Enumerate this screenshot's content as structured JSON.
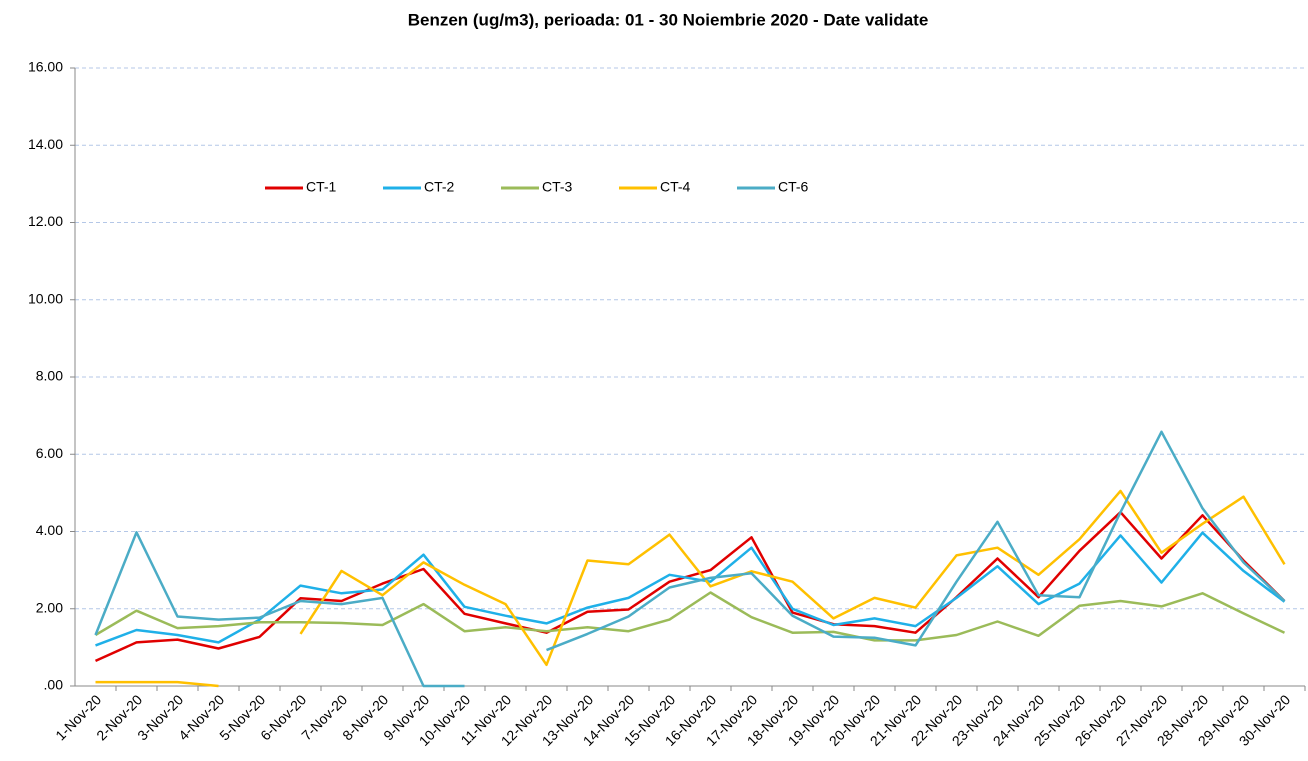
{
  "chart_data": {
    "type": "line",
    "title": "Benzen (ug/m3), perioada: 01 - 30 Noiembrie 2020 - Date validate",
    "categories": [
      "1-Nov-20",
      "2-Nov-20",
      "3-Nov-20",
      "4-Nov-20",
      "5-Nov-20",
      "6-Nov-20",
      "7-Nov-20",
      "8-Nov-20",
      "9-Nov-20",
      "10-Nov-20",
      "11-Nov-20",
      "12-Nov-20",
      "13-Nov-20",
      "14-Nov-20",
      "15-Nov-20",
      "16-Nov-20",
      "17-Nov-20",
      "18-Nov-20",
      "19-Nov-20",
      "20-Nov-20",
      "21-Nov-20",
      "22-Nov-20",
      "23-Nov-20",
      "24-Nov-20",
      "25-Nov-20",
      "26-Nov-20",
      "27-Nov-20",
      "28-Nov-20",
      "29-Nov-20",
      "30-Nov-20"
    ],
    "series": [
      {
        "name": "CT-1",
        "color": "#e00000",
        "values": [
          0.65,
          1.13,
          1.2,
          0.97,
          1.27,
          2.27,
          2.2,
          2.65,
          3.03,
          1.87,
          1.62,
          1.38,
          1.92,
          1.98,
          2.7,
          3.0,
          3.85,
          1.9,
          1.6,
          1.55,
          1.38,
          2.3,
          3.3,
          2.3,
          3.5,
          4.5,
          3.3,
          4.42,
          3.25,
          2.2
        ]
      },
      {
        "name": "CT-2",
        "color": "#1fb0e8",
        "values": [
          1.05,
          1.45,
          1.32,
          1.13,
          1.72,
          2.6,
          2.4,
          2.5,
          3.4,
          2.05,
          1.82,
          1.62,
          2.03,
          2.28,
          2.88,
          2.7,
          3.58,
          2.0,
          1.58,
          1.75,
          1.55,
          2.28,
          3.1,
          2.12,
          2.65,
          3.9,
          2.68,
          3.97,
          2.98,
          2.18
        ]
      },
      {
        "name": "CT-3",
        "color": "#9bbb59",
        "values": [
          1.32,
          1.95,
          1.5,
          1.55,
          1.65,
          1.65,
          1.63,
          1.58,
          2.12,
          1.42,
          1.52,
          1.42,
          1.52,
          1.42,
          1.72,
          2.42,
          1.78,
          1.38,
          1.4,
          1.18,
          1.18,
          1.32,
          1.67,
          1.3,
          2.08,
          2.2,
          2.06,
          2.4,
          1.88,
          1.38
        ]
      },
      {
        "name": "CT-4",
        "color": "#ffc000",
        "values": [
          0.1,
          0.1,
          0.1,
          0,
          null,
          1.35,
          2.98,
          2.35,
          3.2,
          2.62,
          2.12,
          0.55,
          3.25,
          3.15,
          3.92,
          2.58,
          2.97,
          2.7,
          1.75,
          2.28,
          2.03,
          3.38,
          3.58,
          2.88,
          3.8,
          5.05,
          3.45,
          4.2,
          4.9,
          3.15
        ]
      },
      {
        "name": "CT-6",
        "color": "#4bacc6",
        "values": [
          1.32,
          3.98,
          1.8,
          1.72,
          1.77,
          2.2,
          2.12,
          2.28,
          0,
          0,
          null,
          0.93,
          1.35,
          1.8,
          2.55,
          2.8,
          2.92,
          1.82,
          1.28,
          1.25,
          1.05,
          2.7,
          4.25,
          2.35,
          2.3,
          4.5,
          6.58,
          4.6,
          3.2,
          2.2
        ]
      }
    ],
    "ylim": [
      0,
      16
    ],
    "yticks": [
      {
        "value": 0,
        "label": ".00"
      },
      {
        "value": 2,
        "label": "2.00"
      },
      {
        "value": 4,
        "label": "4.00"
      },
      {
        "value": 6,
        "label": "6.00"
      },
      {
        "value": 8,
        "label": "8.00"
      },
      {
        "value": 10,
        "label": "10.00"
      },
      {
        "value": 12,
        "label": "12.00"
      },
      {
        "value": 14,
        "label": "14.00"
      },
      {
        "value": 16,
        "label": "16.00"
      }
    ],
    "grid": true,
    "legend": "upper left"
  }
}
